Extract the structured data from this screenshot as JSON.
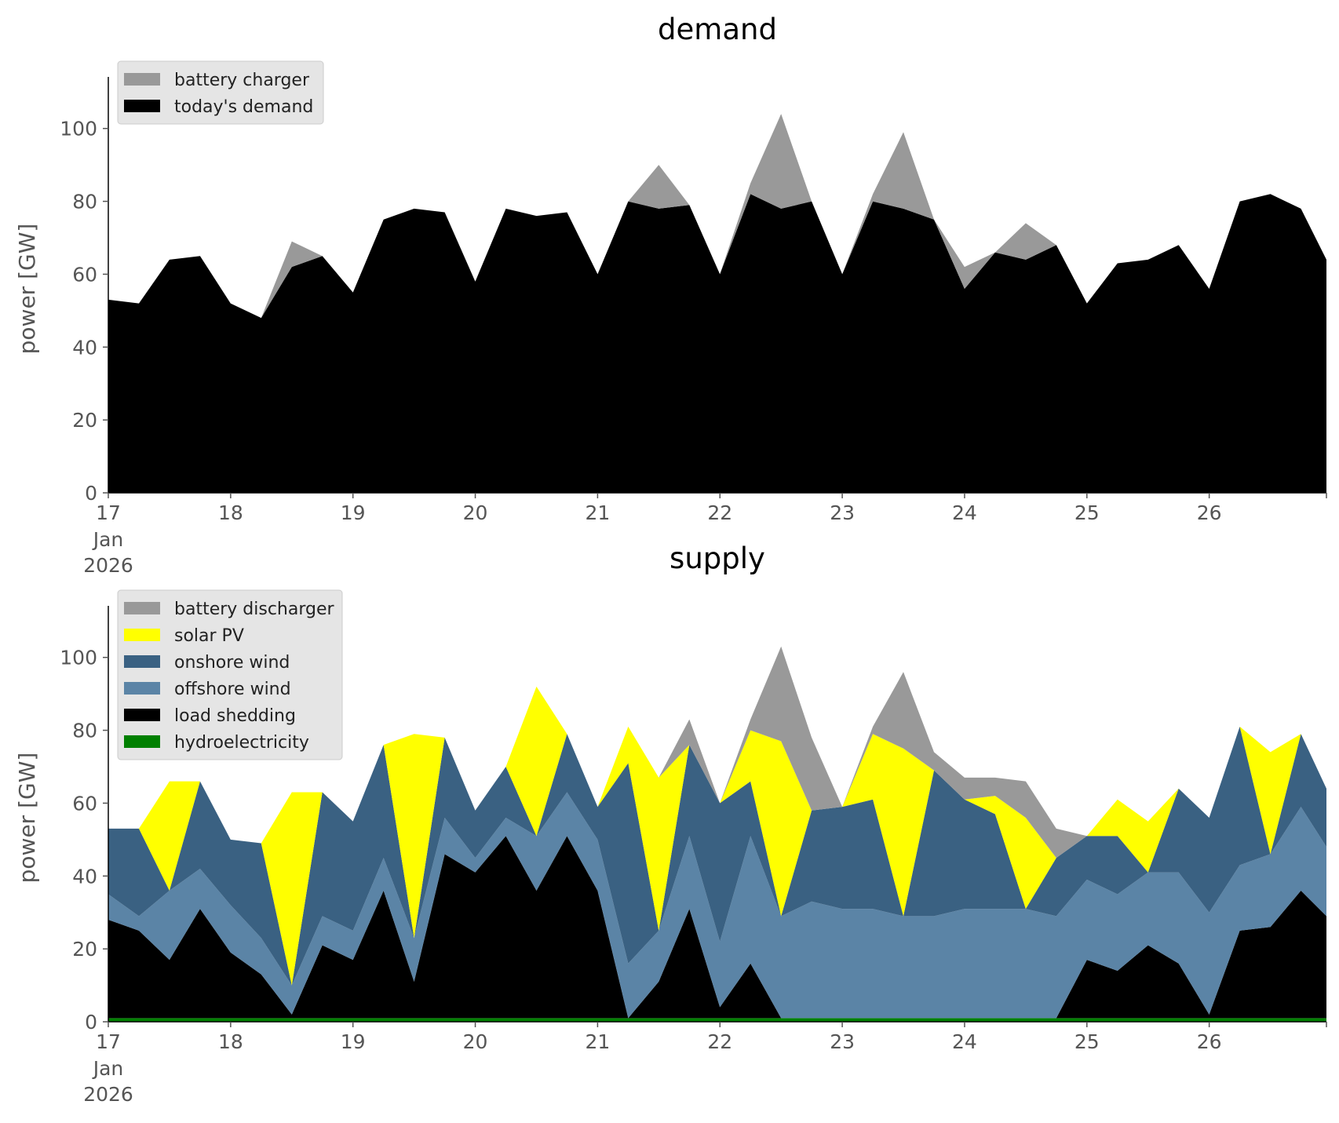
{
  "chart_data": [
    {
      "type": "area",
      "title": "demand",
      "ylabel": "power [GW]",
      "ylim": [
        0,
        112
      ],
      "xlim": [
        "2026-01-17",
        "2026-01-26 23:00"
      ],
      "yticks": [
        "0",
        "20",
        "40",
        "60",
        "80",
        "100"
      ],
      "xticks": [
        "17",
        "18",
        "19",
        "20",
        "21",
        "22",
        "23",
        "24",
        "25",
        "26"
      ],
      "xtick_sub": [
        "Jan",
        "2026"
      ],
      "legend_position": "upper-left",
      "grid": false,
      "x": [
        "2026-01-17 00:00",
        "2026-01-17 06:00",
        "2026-01-17 12:00",
        "2026-01-17 18:00",
        "2026-01-18 00:00",
        "2026-01-18 06:00",
        "2026-01-18 12:00",
        "2026-01-18 18:00",
        "2026-01-19 00:00",
        "2026-01-19 06:00",
        "2026-01-19 12:00",
        "2026-01-19 18:00",
        "2026-01-20 00:00",
        "2026-01-20 06:00",
        "2026-01-20 12:00",
        "2026-01-20 18:00",
        "2026-01-21 00:00",
        "2026-01-21 06:00",
        "2026-01-21 12:00",
        "2026-01-21 18:00",
        "2026-01-22 00:00",
        "2026-01-22 06:00",
        "2026-01-22 12:00",
        "2026-01-22 18:00",
        "2026-01-23 00:00",
        "2026-01-23 06:00",
        "2026-01-23 12:00",
        "2026-01-23 18:00",
        "2026-01-24 00:00",
        "2026-01-24 06:00",
        "2026-01-24 12:00",
        "2026-01-24 18:00",
        "2026-01-25 00:00",
        "2026-01-25 06:00",
        "2026-01-25 12:00",
        "2026-01-25 18:00",
        "2026-01-26 00:00",
        "2026-01-26 06:00",
        "2026-01-26 12:00",
        "2026-01-26 18:00",
        "2026-01-26 23:00"
      ],
      "series": [
        {
          "name": "today's demand",
          "color": "#000000",
          "values": [
            53,
            52,
            64,
            65,
            52,
            48,
            62,
            65,
            55,
            75,
            78,
            77,
            58,
            78,
            76,
            77,
            60,
            80,
            78,
            79,
            60,
            82,
            78,
            80,
            60,
            80,
            78,
            75,
            56,
            66,
            64,
            68,
            52,
            63,
            64,
            68,
            56,
            80,
            82,
            78,
            64
          ]
        },
        {
          "name": "battery charger",
          "color": "#999999",
          "values": [
            0,
            0,
            0,
            0,
            0,
            0,
            7,
            0,
            0,
            0,
            0,
            0,
            0,
            0,
            0,
            0,
            0,
            0,
            12,
            0,
            0,
            3,
            26,
            0,
            0,
            2,
            21,
            0,
            6,
            0,
            10,
            0,
            0,
            0,
            0,
            0,
            0,
            0,
            0,
            0,
            0
          ]
        }
      ]
    },
    {
      "type": "area",
      "title": "supply",
      "ylabel": "power [GW]",
      "ylim": [
        0,
        112
      ],
      "xlim": [
        "2026-01-17",
        "2026-01-26 23:00"
      ],
      "yticks": [
        "0",
        "20",
        "40",
        "60",
        "80",
        "100"
      ],
      "xticks": [
        "17",
        "18",
        "19",
        "20",
        "21",
        "22",
        "23",
        "24",
        "25",
        "26"
      ],
      "xtick_sub": [
        "Jan",
        "2026"
      ],
      "legend_position": "upper-left",
      "grid": false,
      "x": [
        "2026-01-17 00:00",
        "2026-01-17 06:00",
        "2026-01-17 12:00",
        "2026-01-17 18:00",
        "2026-01-18 00:00",
        "2026-01-18 06:00",
        "2026-01-18 12:00",
        "2026-01-18 18:00",
        "2026-01-19 00:00",
        "2026-01-19 06:00",
        "2026-01-19 12:00",
        "2026-01-19 18:00",
        "2026-01-20 00:00",
        "2026-01-20 06:00",
        "2026-01-20 12:00",
        "2026-01-20 18:00",
        "2026-01-21 00:00",
        "2026-01-21 06:00",
        "2026-01-21 12:00",
        "2026-01-21 18:00",
        "2026-01-22 00:00",
        "2026-01-22 06:00",
        "2026-01-22 12:00",
        "2026-01-22 18:00",
        "2026-01-23 00:00",
        "2026-01-23 06:00",
        "2026-01-23 12:00",
        "2026-01-23 18:00",
        "2026-01-24 00:00",
        "2026-01-24 06:00",
        "2026-01-24 12:00",
        "2026-01-24 18:00",
        "2026-01-25 00:00",
        "2026-01-25 06:00",
        "2026-01-25 12:00",
        "2026-01-25 18:00",
        "2026-01-26 00:00",
        "2026-01-26 06:00",
        "2026-01-26 12:00",
        "2026-01-26 18:00",
        "2026-01-26 23:00"
      ],
      "series": [
        {
          "name": "hydroelectricity",
          "color": "#008000",
          "values": [
            1,
            1,
            1,
            1,
            1,
            1,
            1,
            1,
            1,
            1,
            1,
            1,
            1,
            1,
            1,
            1,
            1,
            1,
            1,
            1,
            1,
            1,
            1,
            1,
            1,
            1,
            1,
            1,
            1,
            1,
            1,
            1,
            1,
            1,
            1,
            1,
            1,
            1,
            1,
            1,
            1
          ]
        },
        {
          "name": "load shedding",
          "color": "#000000",
          "values": [
            27,
            24,
            16,
            30,
            18,
            12,
            1,
            20,
            16,
            35,
            10,
            45,
            40,
            50,
            35,
            50,
            35,
            0,
            10,
            30,
            3,
            15,
            0,
            0,
            0,
            0,
            0,
            0,
            0,
            0,
            0,
            0,
            16,
            13,
            20,
            15,
            1,
            24,
            25,
            35,
            28
          ]
        },
        {
          "name": "offshore wind",
          "color": "#5b84a6",
          "values": [
            7,
            4,
            19,
            11,
            13,
            10,
            8,
            8,
            8,
            9,
            12,
            10,
            4,
            5,
            15,
            12,
            14,
            15,
            14,
            20,
            18,
            35,
            28,
            32,
            30,
            30,
            28,
            28,
            30,
            30,
            30,
            28,
            22,
            21,
            20,
            25,
            28,
            18,
            20,
            23,
            19
          ]
        },
        {
          "name": "onshore wind",
          "color": "#3a6182",
          "values": [
            18,
            24,
            0,
            24,
            18,
            26,
            0,
            34,
            30,
            31,
            0,
            22,
            13,
            14,
            0,
            16,
            9,
            55,
            0,
            25,
            38,
            15,
            0,
            25,
            28,
            30,
            0,
            40,
            30,
            26,
            0,
            16,
            12,
            16,
            0,
            23,
            26,
            38,
            0,
            20,
            16
          ]
        },
        {
          "name": "solar PV",
          "color": "#ffff00",
          "values": [
            0,
            0,
            30,
            0,
            0,
            0,
            53,
            0,
            0,
            0,
            56,
            0,
            0,
            0,
            41,
            0,
            0,
            10,
            42,
            0,
            0,
            14,
            48,
            0,
            0,
            18,
            46,
            0,
            0,
            5,
            25,
            0,
            0,
            10,
            14,
            0,
            0,
            0,
            28,
            0,
            0
          ]
        },
        {
          "name": "battery discharger",
          "color": "#999999",
          "values": [
            0,
            0,
            0,
            0,
            0,
            0,
            0,
            0,
            0,
            0,
            0,
            0,
            0,
            0,
            0,
            0,
            0,
            0,
            0,
            7,
            0,
            3,
            26,
            20,
            0,
            2,
            21,
            5,
            6,
            5,
            10,
            8,
            0,
            0,
            0,
            0,
            0,
            0,
            0,
            0,
            0
          ]
        }
      ]
    }
  ]
}
